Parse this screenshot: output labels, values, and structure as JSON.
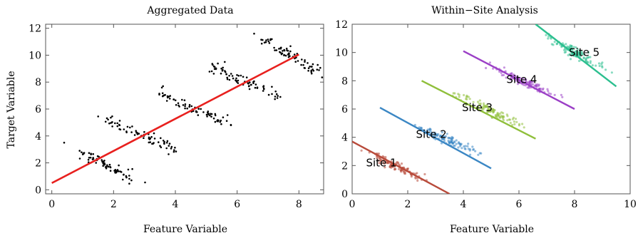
{
  "chart_data": [
    {
      "type": "scatter",
      "title": "Aggregated Data",
      "xlabel": "Feature Variable",
      "ylabel": "Target Variable",
      "xlim": [
        -0.2,
        8.8
      ],
      "ylim": [
        -0.3,
        12.3
      ],
      "xticks": [
        0,
        2,
        4,
        6,
        8
      ],
      "yticks": [
        0,
        2,
        4,
        6,
        8,
        10,
        12
      ],
      "grid": false,
      "colors": {
        "points": "#000000",
        "fit": "#e8201e"
      },
      "fit_line": {
        "x": [
          0,
          8
        ],
        "y": [
          0.5,
          10.05
        ]
      },
      "clusters": [
        {
          "x": [
            1.0,
            1.3,
            1.65,
            1.95,
            2.2,
            2.75
          ],
          "y": [
            2.8,
            2.4,
            1.95,
            1.55,
            1.2,
            0.8
          ]
        },
        {
          "x": [
            1.75,
            2.2,
            2.7,
            3.1,
            3.55,
            3.95
          ],
          "y": [
            5.2,
            4.7,
            4.3,
            3.9,
            3.4,
            2.9
          ]
        },
        {
          "x": [
            3.55,
            4.0,
            4.45,
            4.8,
            5.2,
            5.65
          ],
          "y": [
            7.1,
            6.6,
            6.15,
            5.8,
            5.4,
            5.05
          ]
        },
        {
          "x": [
            5.1,
            5.6,
            6.05,
            6.45,
            6.85,
            7.3
          ],
          "y": [
            9.3,
            8.7,
            8.25,
            7.85,
            7.45,
            7.0
          ]
        },
        {
          "x": [
            6.75,
            7.25,
            7.6,
            7.95,
            8.3,
            8.6
          ],
          "y": [
            11.3,
            10.7,
            10.2,
            9.7,
            9.2,
            8.7
          ]
        }
      ],
      "outliers": [
        {
          "x": 0.4,
          "y": 3.5
        },
        {
          "x": 0.9,
          "y": 2.9
        },
        {
          "x": 1.5,
          "y": 5.45
        },
        {
          "x": 3.6,
          "y": 7.7
        },
        {
          "x": 5.6,
          "y": 9.5
        },
        {
          "x": 5.8,
          "y": 4.8
        },
        {
          "x": 6.55,
          "y": 11.6
        },
        {
          "x": 7.4,
          "y": 6.9
        },
        {
          "x": 8.75,
          "y": 8.35
        }
      ]
    },
    {
      "type": "scatter",
      "title": "Within−Site Analysis",
      "xlabel": "Feature Variable",
      "ylabel": "",
      "xlim": [
        0,
        10
      ],
      "ylim": [
        0,
        12
      ],
      "xticks": [
        0,
        2,
        4,
        6,
        8,
        10
      ],
      "yticks": [
        0,
        2,
        4,
        6,
        8,
        10,
        12
      ],
      "grid": false,
      "sites": [
        {
          "label": "Site 1",
          "color": "#b84a3a",
          "label_at": [
            1.05,
            2.2
          ],
          "line": {
            "x": [
              0,
              3.5
            ],
            "y": [
              3.7,
              0
            ]
          },
          "cloud": {
            "x": [
              0.5,
              2.6
            ],
            "y": [
              2.9,
              1.0
            ]
          }
        },
        {
          "label": "Site 2",
          "color": "#3b87c4",
          "label_at": [
            2.85,
            4.2
          ],
          "line": {
            "x": [
              1.0,
              5.0
            ],
            "y": [
              6.1,
              1.8
            ]
          },
          "cloud": {
            "x": [
              2.2,
              4.5
            ],
            "y": [
              4.9,
              2.9
            ]
          }
        },
        {
          "label": "Site 3",
          "color": "#8fbf3a",
          "label_at": [
            4.5,
            6.1
          ],
          "line": {
            "x": [
              2.5,
              6.6
            ],
            "y": [
              8.0,
              3.9
            ]
          },
          "cloud": {
            "x": [
              3.8,
              6.3
            ],
            "y": [
              7.0,
              4.6
            ]
          }
        },
        {
          "label": "Site 4",
          "color": "#9b3fc6",
          "label_at": [
            6.1,
            8.1
          ],
          "line": {
            "x": [
              4.0,
              8.0
            ],
            "y": [
              10.1,
              6.0
            ]
          },
          "cloud": {
            "x": [
              5.0,
              7.5
            ],
            "y": [
              9.0,
              6.8
            ]
          }
        },
        {
          "label": "Site 5",
          "color": "#2cbf8f",
          "label_at": [
            8.35,
            10.0
          ],
          "line": {
            "x": [
              6.6,
              9.5
            ],
            "y": [
              12.0,
              7.6
            ]
          },
          "cloud": {
            "x": [
              7.0,
              9.2
            ],
            "y": [
              11.2,
              8.6
            ]
          }
        }
      ]
    }
  ]
}
